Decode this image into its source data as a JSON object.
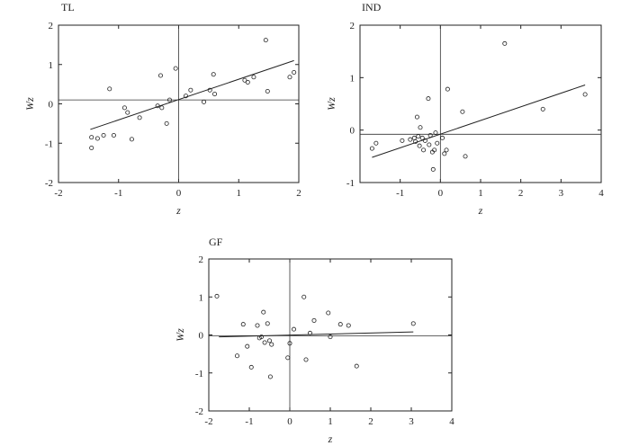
{
  "chart_data": [
    {
      "type": "scatter",
      "title": "TL",
      "xlabel": "z",
      "ylabel": "Wz",
      "xlim": [
        -2.0,
        2.0
      ],
      "ylim": [
        -2.0,
        2.0
      ],
      "xticks": [
        "-2",
        "-1",
        "0",
        "1",
        "2"
      ],
      "yticks": [
        "-2",
        "-1",
        "0",
        "1",
        "2"
      ],
      "grid": false,
      "mean_lines": {
        "x": 0.0,
        "y": 0.1
      },
      "fit_line": {
        "x": [
          -1.47,
          1.92
        ],
        "y": [
          -0.65,
          1.1
        ]
      },
      "points": {
        "x": [
          -1.45,
          -1.45,
          -1.35,
          -1.25,
          -1.15,
          -1.08,
          -0.9,
          -0.85,
          -0.78,
          -0.65,
          -0.35,
          -0.3,
          -0.28,
          -0.2,
          -0.15,
          -0.05,
          0.12,
          0.2,
          0.42,
          0.52,
          0.58,
          0.6,
          1.1,
          1.15,
          1.25,
          1.45,
          1.48,
          1.85,
          1.92
        ],
        "y": [
          -1.12,
          -0.85,
          -0.88,
          -0.8,
          0.38,
          -0.8,
          -0.1,
          -0.22,
          -0.9,
          -0.35,
          -0.05,
          0.72,
          -0.1,
          -0.5,
          0.1,
          0.9,
          0.2,
          0.35,
          0.05,
          0.35,
          0.75,
          0.25,
          0.6,
          0.55,
          0.68,
          1.62,
          0.32,
          0.68,
          0.8
        ]
      }
    },
    {
      "type": "scatter",
      "title": "IND",
      "xlabel": "z",
      "ylabel": "Wz",
      "xlim": [
        -2.0,
        4.0
      ],
      "ylim": [
        -1.0,
        2.0
      ],
      "xticks": [
        "-1",
        "0",
        "1",
        "2",
        "3",
        "4"
      ],
      "yticks": [
        "-1",
        "0",
        "1",
        "2"
      ],
      "grid": false,
      "mean_lines": {
        "x": 0.0,
        "y": -0.08
      },
      "fit_line": {
        "x": [
          -1.7,
          3.6
        ],
        "y": [
          -0.52,
          0.86
        ]
      },
      "points": {
        "x": [
          -1.7,
          -1.6,
          -0.95,
          -0.75,
          -0.65,
          -0.62,
          -0.58,
          -0.55,
          -0.52,
          -0.5,
          -0.45,
          -0.42,
          -0.38,
          -0.3,
          -0.28,
          -0.25,
          -0.2,
          -0.18,
          -0.15,
          -0.12,
          -0.08,
          0.05,
          0.1,
          0.15,
          0.18,
          0.55,
          0.62,
          1.6,
          2.55,
          3.6
        ],
        "y": [
          -0.35,
          -0.25,
          -0.2,
          -0.18,
          -0.15,
          -0.22,
          0.25,
          -0.12,
          -0.3,
          0.05,
          -0.15,
          -0.38,
          -0.2,
          0.6,
          -0.28,
          -0.1,
          -0.42,
          -0.75,
          -0.38,
          -0.05,
          -0.25,
          -0.15,
          -0.45,
          -0.38,
          0.78,
          0.35,
          -0.5,
          1.65,
          0.4,
          0.68
        ]
      }
    },
    {
      "type": "scatter",
      "title": "GF",
      "xlabel": "z",
      "ylabel": "Wz",
      "xlim": [
        -2.0,
        4.0
      ],
      "ylim": [
        -2.0,
        2.0
      ],
      "xticks": [
        "-2",
        "-1",
        "0",
        "1",
        "2",
        "3",
        "4"
      ],
      "yticks": [
        "-2",
        "-1",
        "0",
        "1",
        "2"
      ],
      "grid": false,
      "mean_lines": {
        "x": 0.0,
        "y": -0.02
      },
      "fit_line": {
        "x": [
          -1.75,
          3.05
        ],
        "y": [
          -0.05,
          0.08
        ]
      },
      "points": {
        "x": [
          -1.8,
          -1.3,
          -1.15,
          -1.05,
          -0.95,
          -0.8,
          -0.75,
          -0.7,
          -0.65,
          -0.62,
          -0.55,
          -0.5,
          -0.48,
          -0.45,
          -0.05,
          0.0,
          0.1,
          0.35,
          0.4,
          0.5,
          0.6,
          0.95,
          1.0,
          1.25,
          1.45,
          1.65,
          3.05
        ],
        "y": [
          1.02,
          -0.55,
          0.28,
          -0.3,
          -0.85,
          0.25,
          -0.08,
          -0.05,
          0.6,
          -0.2,
          0.3,
          -0.15,
          -1.1,
          -0.25,
          -0.6,
          -0.22,
          0.15,
          1.0,
          -0.65,
          0.05,
          0.38,
          0.58,
          -0.05,
          0.28,
          0.25,
          -0.82,
          0.3
        ]
      }
    }
  ]
}
